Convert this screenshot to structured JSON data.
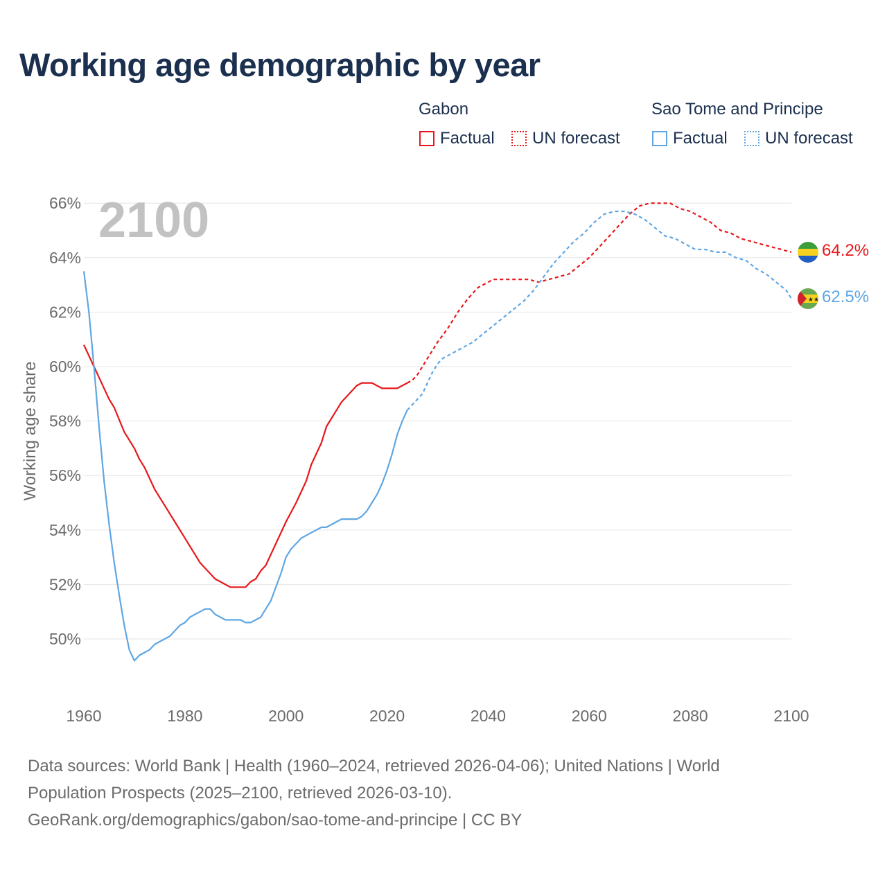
{
  "title": "Working age demographic by year",
  "legend": {
    "groups": [
      {
        "name": "Gabon",
        "factual_label": "Factual",
        "forecast_label": "UN forecast",
        "color": "#e8171b"
      },
      {
        "name": "Sao Tome and Principe",
        "factual_label": "Factual",
        "forecast_label": "UN forecast",
        "color": "#5fa6e3"
      }
    ]
  },
  "year_overlay": "2100",
  "footer": {
    "line1": "Data sources: World Bank | Health (1960–2024, retrieved 2026-04-06); United Nations | World",
    "line2": "Population Prospects (2025–2100, retrieved 2026-03-10).",
    "line3": "GeoRank.org/demographics/gabon/sao-tome-and-principe | CC BY"
  },
  "chart_data": {
    "type": "line",
    "title": "Working age demographic by year",
    "xlabel": "",
    "ylabel": "Working age share",
    "xlim": [
      1960,
      2100
    ],
    "ylim": [
      48,
      66.5
    ],
    "x_ticks": [
      1960,
      1980,
      2000,
      2020,
      2040,
      2060,
      2080,
      2100
    ],
    "x_tick_labels": [
      "1960",
      "1980",
      "2000",
      "2020",
      "2040",
      "2060",
      "2080",
      "2100"
    ],
    "y_ticks": [
      50,
      52,
      54,
      56,
      58,
      60,
      62,
      64,
      66
    ],
    "y_tick_labels": [
      "50%",
      "52%",
      "54%",
      "56%",
      "58%",
      "60%",
      "62%",
      "64%",
      "66%"
    ],
    "grid": true,
    "factual_end_year": 2024,
    "series": [
      {
        "name": "Gabon",
        "color": "#e8171b",
        "end_label": "64.2%",
        "points": [
          [
            1960,
            60.8
          ],
          [
            1962,
            60.0
          ],
          [
            1963,
            59.6
          ],
          [
            1965,
            58.8
          ],
          [
            1966,
            58.5
          ],
          [
            1968,
            57.6
          ],
          [
            1970,
            57.0
          ],
          [
            1971,
            56.6
          ],
          [
            1972,
            56.3
          ],
          [
            1974,
            55.5
          ],
          [
            1976,
            54.9
          ],
          [
            1978,
            54.3
          ],
          [
            1980,
            53.7
          ],
          [
            1982,
            53.1
          ],
          [
            1983,
            52.8
          ],
          [
            1985,
            52.4
          ],
          [
            1986,
            52.2
          ],
          [
            1988,
            52.0
          ],
          [
            1989,
            51.9
          ],
          [
            1992,
            51.9
          ],
          [
            1993,
            52.1
          ],
          [
            1994,
            52.2
          ],
          [
            1995,
            52.5
          ],
          [
            1996,
            52.7
          ],
          [
            1998,
            53.5
          ],
          [
            2000,
            54.3
          ],
          [
            2002,
            55.0
          ],
          [
            2004,
            55.8
          ],
          [
            2005,
            56.4
          ],
          [
            2007,
            57.2
          ],
          [
            2008,
            57.8
          ],
          [
            2010,
            58.4
          ],
          [
            2011,
            58.7
          ],
          [
            2013,
            59.1
          ],
          [
            2014,
            59.3
          ],
          [
            2015,
            59.4
          ],
          [
            2017,
            59.4
          ],
          [
            2019,
            59.2
          ],
          [
            2022,
            59.2
          ],
          [
            2024,
            59.4
          ],
          [
            2025,
            59.5
          ],
          [
            2026,
            59.7
          ],
          [
            2027,
            60.0
          ],
          [
            2028,
            60.3
          ],
          [
            2030,
            60.9
          ],
          [
            2032,
            61.4
          ],
          [
            2034,
            62.0
          ],
          [
            2036,
            62.5
          ],
          [
            2038,
            62.9
          ],
          [
            2040,
            63.1
          ],
          [
            2041,
            63.2
          ],
          [
            2048,
            63.2
          ],
          [
            2050,
            63.1
          ],
          [
            2052,
            63.2
          ],
          [
            2054,
            63.3
          ],
          [
            2056,
            63.4
          ],
          [
            2058,
            63.7
          ],
          [
            2060,
            64.0
          ],
          [
            2062,
            64.4
          ],
          [
            2064,
            64.8
          ],
          [
            2066,
            65.2
          ],
          [
            2068,
            65.6
          ],
          [
            2070,
            65.9
          ],
          [
            2072,
            66.0
          ],
          [
            2076,
            66.0
          ],
          [
            2078,
            65.8
          ],
          [
            2080,
            65.7
          ],
          [
            2082,
            65.5
          ],
          [
            2084,
            65.3
          ],
          [
            2086,
            65.0
          ],
          [
            2088,
            64.9
          ],
          [
            2090,
            64.7
          ],
          [
            2092,
            64.6
          ],
          [
            2094,
            64.5
          ],
          [
            2096,
            64.4
          ],
          [
            2098,
            64.3
          ],
          [
            2100,
            64.2
          ]
        ]
      },
      {
        "name": "Sao Tome and Principe",
        "color": "#5fa6e3",
        "end_label": "62.5%",
        "points": [
          [
            1960,
            63.5
          ],
          [
            1961,
            62.0
          ],
          [
            1962,
            60.0
          ],
          [
            1963,
            57.8
          ],
          [
            1964,
            55.8
          ],
          [
            1965,
            54.2
          ],
          [
            1966,
            52.8
          ],
          [
            1967,
            51.6
          ],
          [
            1968,
            50.5
          ],
          [
            1969,
            49.6
          ],
          [
            1970,
            49.2
          ],
          [
            1971,
            49.4
          ],
          [
            1972,
            49.5
          ],
          [
            1973,
            49.6
          ],
          [
            1974,
            49.8
          ],
          [
            1976,
            50.0
          ],
          [
            1977,
            50.1
          ],
          [
            1978,
            50.3
          ],
          [
            1979,
            50.5
          ],
          [
            1980,
            50.6
          ],
          [
            1981,
            50.8
          ],
          [
            1982,
            50.9
          ],
          [
            1984,
            51.1
          ],
          [
            1985,
            51.1
          ],
          [
            1986,
            50.9
          ],
          [
            1988,
            50.7
          ],
          [
            1991,
            50.7
          ],
          [
            1992,
            50.6
          ],
          [
            1993,
            50.6
          ],
          [
            1995,
            50.8
          ],
          [
            1996,
            51.1
          ],
          [
            1997,
            51.4
          ],
          [
            1998,
            51.9
          ],
          [
            1999,
            52.4
          ],
          [
            2000,
            53.0
          ],
          [
            2001,
            53.3
          ],
          [
            2002,
            53.5
          ],
          [
            2003,
            53.7
          ],
          [
            2005,
            53.9
          ],
          [
            2007,
            54.1
          ],
          [
            2008,
            54.1
          ],
          [
            2010,
            54.3
          ],
          [
            2011,
            54.4
          ],
          [
            2014,
            54.4
          ],
          [
            2015,
            54.5
          ],
          [
            2016,
            54.7
          ],
          [
            2017,
            55.0
          ],
          [
            2018,
            55.3
          ],
          [
            2019,
            55.7
          ],
          [
            2020,
            56.2
          ],
          [
            2021,
            56.8
          ],
          [
            2022,
            57.5
          ],
          [
            2023,
            58.0
          ],
          [
            2024,
            58.4
          ],
          [
            2025,
            58.6
          ],
          [
            2026,
            58.8
          ],
          [
            2027,
            59.0
          ],
          [
            2028,
            59.4
          ],
          [
            2029,
            59.8
          ],
          [
            2030,
            60.1
          ],
          [
            2031,
            60.3
          ],
          [
            2033,
            60.5
          ],
          [
            2035,
            60.7
          ],
          [
            2037,
            60.9
          ],
          [
            2039,
            61.2
          ],
          [
            2041,
            61.5
          ],
          [
            2043,
            61.8
          ],
          [
            2045,
            62.1
          ],
          [
            2047,
            62.4
          ],
          [
            2049,
            62.8
          ],
          [
            2051,
            63.3
          ],
          [
            2053,
            63.8
          ],
          [
            2055,
            64.2
          ],
          [
            2057,
            64.6
          ],
          [
            2059,
            64.9
          ],
          [
            2061,
            65.3
          ],
          [
            2063,
            65.6
          ],
          [
            2065,
            65.7
          ],
          [
            2067,
            65.7
          ],
          [
            2069,
            65.6
          ],
          [
            2071,
            65.4
          ],
          [
            2073,
            65.1
          ],
          [
            2075,
            64.8
          ],
          [
            2077,
            64.7
          ],
          [
            2079,
            64.5
          ],
          [
            2081,
            64.3
          ],
          [
            2083,
            64.3
          ],
          [
            2085,
            64.2
          ],
          [
            2087,
            64.2
          ],
          [
            2089,
            64.0
          ],
          [
            2091,
            63.9
          ],
          [
            2093,
            63.6
          ],
          [
            2095,
            63.4
          ],
          [
            2097,
            63.1
          ],
          [
            2099,
            62.8
          ],
          [
            2100,
            62.5
          ]
        ]
      }
    ]
  }
}
